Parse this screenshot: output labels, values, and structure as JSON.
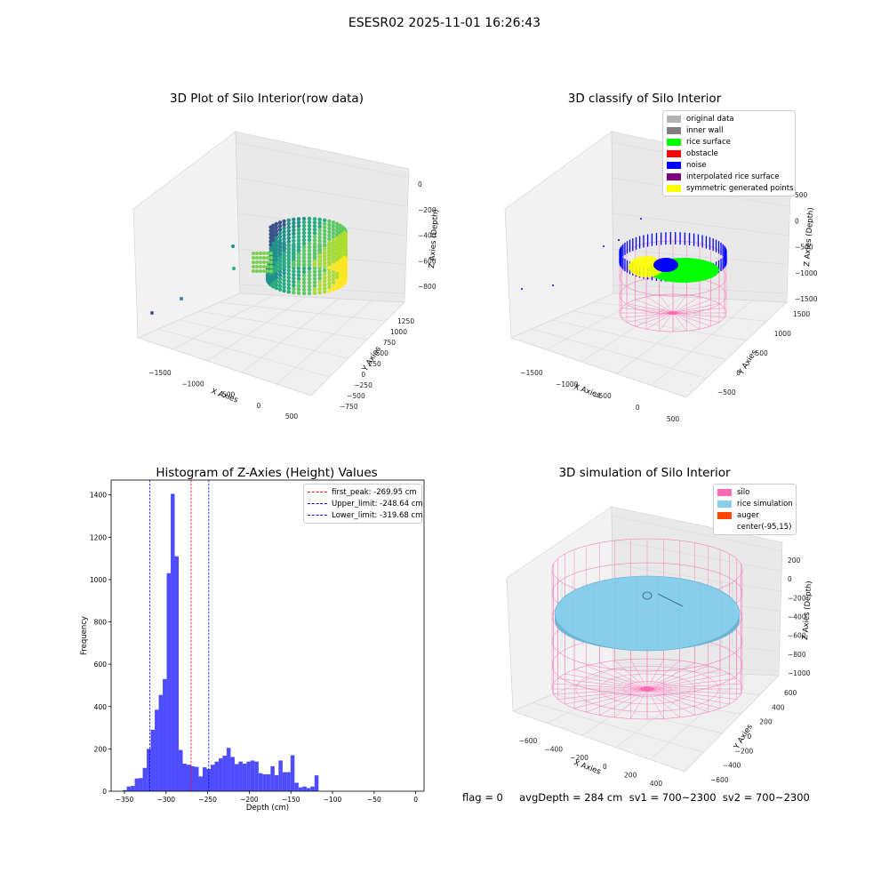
{
  "suptitle": "ESESR02 2025-11-01 16:26:43",
  "chart_data": [
    {
      "type": "scatter",
      "subtype": "3d",
      "title": "3D Plot of Silo Interior(row data)",
      "xlabel": "X Axies",
      "ylabel": "Y Axies",
      "zlabel": "Z Axies (Depth)",
      "x_ticks": [
        "−1500",
        "−1000",
        "−500",
        "0",
        "500"
      ],
      "y_ticks": [
        "−750",
        "−500",
        "−250",
        "0",
        "250",
        "500",
        "750",
        "1000",
        "1250"
      ],
      "z_ticks": [
        "0",
        "−200",
        "−400",
        "−600",
        "−800"
      ],
      "colormap": "viridis"
    },
    {
      "type": "scatter",
      "subtype": "3d",
      "title": "3D classify of Silo Interior",
      "xlabel": "X Axies",
      "ylabel": "Y Axies",
      "zlabel": "Z Axies (Depth)",
      "x_ticks": [
        "−1500",
        "−1000",
        "−500",
        "0",
        "500"
      ],
      "y_ticks": [
        "−500",
        "0",
        "500",
        "1000",
        "1500"
      ],
      "z_ticks": [
        "500",
        "0",
        "−500",
        "−1000",
        "−1500"
      ],
      "legend": [
        {
          "label": "original data",
          "color": "#b3b3b3"
        },
        {
          "label": "inner wall",
          "color": "#808080"
        },
        {
          "label": "rice surface",
          "color": "#00ff00"
        },
        {
          "label": "obstacle",
          "color": "#ff0000"
        },
        {
          "label": "noise",
          "color": "#0000ff"
        },
        {
          "label": "interpolated rice surface",
          "color": "#800080"
        },
        {
          "label": "symmetric generated points",
          "color": "#ffff00"
        }
      ],
      "legend_position": "top-right"
    },
    {
      "type": "bar",
      "subtype": "histogram",
      "title": "Histogram of Z-Axies (Height) Values",
      "xlabel": "Depth (cm)",
      "ylabel": "Frequency",
      "xlim": [
        -366,
        10
      ],
      "ylim": [
        0,
        1470
      ],
      "x_ticks": [
        "−350",
        "−300",
        "−250",
        "−200",
        "−150",
        "−100",
        "−50",
        "0"
      ],
      "y_ticks": [
        "0",
        "200",
        "400",
        "600",
        "800",
        "1000",
        "1200",
        "1400"
      ],
      "bin_start": -352,
      "bin_width": 4.8,
      "values": [
        5,
        22,
        25,
        60,
        62,
        110,
        200,
        290,
        385,
        455,
        530,
        1030,
        1405,
        1110,
        195,
        130,
        125,
        118,
        115,
        70,
        113,
        105,
        125,
        140,
        155,
        168,
        205,
        162,
        128,
        140,
        130,
        140,
        145,
        140,
        85,
        80,
        80,
        118,
        76,
        145,
        90,
        90,
        170,
        40,
        18,
        22,
        15,
        22,
        75
      ],
      "bar_color": "#4d4dff",
      "vlines": [
        {
          "label": "first_peak: -269.95 cm",
          "x": -269.95,
          "color": "#ff0000"
        },
        {
          "label": "Upper_limit: -248.64 cm",
          "x": -248.64,
          "color": "#0000ff"
        },
        {
          "label": "Lower_limit: -319.68 cm",
          "x": -319.68,
          "color": "#0000ff"
        }
      ],
      "legend_position": "top-right"
    },
    {
      "type": "scatter",
      "subtype": "3d-surface",
      "title": "3D simulation of Silo Interior",
      "xlabel": "X Axies",
      "ylabel": "Y Axies",
      "zlabel": "Z Axies (Depth)",
      "x_ticks": [
        "−600",
        "−400",
        "−200",
        "0",
        "200",
        "400"
      ],
      "y_ticks": [
        "−600",
        "−400",
        "−200",
        "0",
        "200",
        "400",
        "600"
      ],
      "z_ticks": [
        "200",
        "0",
        "−200",
        "−400",
        "−600",
        "−800",
        "−1000"
      ],
      "legend": [
        {
          "label": "silo",
          "color": "#ff69b4"
        },
        {
          "label": "rice simulation",
          "color": "#87ceeb"
        },
        {
          "label": "auger",
          "color": "#ff4500"
        },
        {
          "label": "center(-95,15)",
          "color": ""
        }
      ],
      "legend_position": "top-right"
    }
  ],
  "info_text": "flag = 0     avgDepth = 284 cm  sv1 = 700~2300  sv2 = 700~2300"
}
